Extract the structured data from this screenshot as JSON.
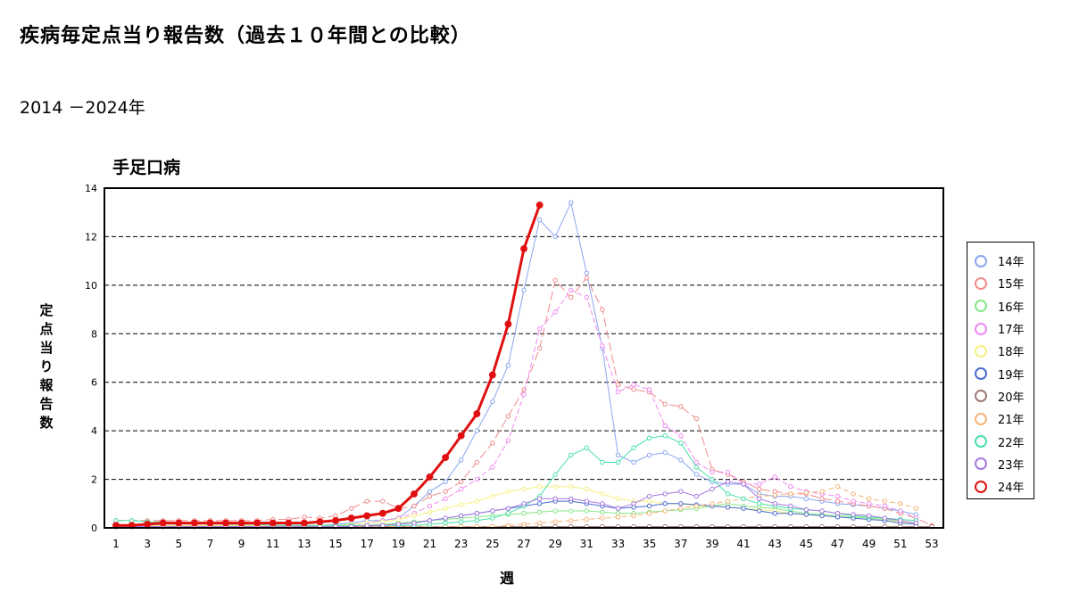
{
  "page": {
    "title": "疾病毎定点当り報告数（過去１０年間との比較）",
    "subtitle": "2014 －2024年"
  },
  "chart_data": {
    "type": "line",
    "title": "手足口病",
    "xlabel": "週",
    "ylabel": "定点当り報告数",
    "xlim": [
      1,
      53
    ],
    "ylim": [
      0,
      14
    ],
    "y_ticks": [
      0,
      2,
      4,
      6,
      8,
      10,
      12,
      14
    ],
    "x_ticks": [
      1,
      3,
      5,
      7,
      9,
      11,
      13,
      15,
      17,
      19,
      21,
      23,
      25,
      27,
      29,
      31,
      33,
      35,
      37,
      39,
      41,
      43,
      45,
      47,
      49,
      51,
      53
    ],
    "grid": "horizontal dashed",
    "legend": "right",
    "series": [
      {
        "name": "14年",
        "color": "#8aa6f0",
        "dash": "solid",
        "width": 1,
        "values": [
          0.1,
          0.1,
          0.1,
          0.1,
          0.1,
          0.1,
          0.1,
          0.1,
          0.1,
          0.1,
          0.1,
          0.1,
          0.1,
          0.1,
          0.15,
          0.2,
          0.3,
          0.3,
          0.4,
          0.9,
          1.5,
          1.9,
          2.8,
          4.0,
          5.2,
          6.7,
          9.8,
          12.7,
          12.0,
          13.4,
          10.5,
          7.4,
          3.0,
          2.7,
          3.0,
          3.1,
          2.8,
          2.2,
          1.9,
          1.8,
          1.8,
          1.4,
          1.3,
          1.3,
          1.2,
          1.1,
          1.0,
          0.95,
          0.9,
          0.8,
          0.7,
          0.55
        ]
      },
      {
        "name": "15年",
        "color": "#f08a8a",
        "dash": "10,4",
        "width": 1,
        "values": [
          0.3,
          0.3,
          0.3,
          0.3,
          0.3,
          0.3,
          0.3,
          0.3,
          0.3,
          0.3,
          0.35,
          0.35,
          0.45,
          0.4,
          0.5,
          0.8,
          1.1,
          1.1,
          0.8,
          0.9,
          1.3,
          1.5,
          1.9,
          2.7,
          3.5,
          4.6,
          5.7,
          7.4,
          10.2,
          9.5,
          10.3,
          9.0,
          5.9,
          5.7,
          5.6,
          5.1,
          5.0,
          4.5,
          2.4,
          2.2,
          1.9,
          1.6,
          1.5,
          1.4,
          1.4,
          1.2,
          1.1,
          1.0,
          0.9,
          0.8,
          0.6,
          0.4,
          0.1
        ]
      },
      {
        "name": "16年",
        "color": "#88e888",
        "dash": "solid",
        "width": 1,
        "values": [
          0.1,
          0.1,
          0.1,
          0.1,
          0.1,
          0.1,
          0.1,
          0.1,
          0.1,
          0.1,
          0.1,
          0.1,
          0.1,
          0.1,
          0.1,
          0.1,
          0.1,
          0.15,
          0.2,
          0.25,
          0.3,
          0.35,
          0.4,
          0.45,
          0.5,
          0.55,
          0.6,
          0.65,
          0.7,
          0.7,
          0.7,
          0.65,
          0.6,
          0.6,
          0.65,
          0.7,
          0.75,
          0.8,
          0.9,
          1.0,
          0.9,
          0.85,
          0.8,
          0.7,
          0.6,
          0.55,
          0.5,
          0.45,
          0.4,
          0.35,
          0.3,
          0.2
        ]
      },
      {
        "name": "17年",
        "color": "#f088f0",
        "dash": "6,3",
        "width": 1,
        "values": [
          0.1,
          0.1,
          0.1,
          0.1,
          0.1,
          0.1,
          0.1,
          0.1,
          0.1,
          0.1,
          0.1,
          0.1,
          0.1,
          0.1,
          0.1,
          0.15,
          0.2,
          0.3,
          0.4,
          0.6,
          0.9,
          1.2,
          1.6,
          2.0,
          2.5,
          3.6,
          5.5,
          8.2,
          8.9,
          9.8,
          9.5,
          7.5,
          5.6,
          5.9,
          5.7,
          4.2,
          3.8,
          2.7,
          2.3,
          2.3,
          1.8,
          1.8,
          2.1,
          1.7,
          1.5,
          1.4,
          1.3,
          1.1,
          1.0,
          0.9,
          0.7,
          0.4
        ]
      },
      {
        "name": "18年",
        "color": "#f5f080",
        "dash": "solid",
        "width": 1,
        "values": [
          0.1,
          0.1,
          0.1,
          0.1,
          0.1,
          0.1,
          0.1,
          0.1,
          0.1,
          0.1,
          0.1,
          0.1,
          0.1,
          0.1,
          0.1,
          0.15,
          0.2,
          0.25,
          0.35,
          0.5,
          0.65,
          0.8,
          0.95,
          1.1,
          1.3,
          1.5,
          1.6,
          1.7,
          1.7,
          1.7,
          1.6,
          1.4,
          1.2,
          1.1,
          1.1,
          1.0,
          1.0,
          0.9,
          0.9,
          0.85,
          0.8,
          0.75,
          0.7,
          0.6,
          0.55,
          0.5,
          0.45,
          0.4,
          0.35,
          0.3,
          0.25,
          0.2
        ]
      },
      {
        "name": "19年",
        "color": "#4a6cd0",
        "dash": "solid",
        "width": 1,
        "values": [
          0.05,
          0.05,
          0.05,
          0.05,
          0.05,
          0.05,
          0.05,
          0.05,
          0.05,
          0.05,
          0.05,
          0.05,
          0.05,
          0.05,
          0.05,
          0.05,
          0.1,
          0.1,
          0.15,
          0.2,
          0.3,
          0.4,
          0.5,
          0.6,
          0.7,
          0.8,
          0.9,
          1.0,
          1.1,
          1.1,
          1.0,
          0.9,
          0.8,
          0.85,
          0.9,
          1.0,
          1.0,
          0.95,
          0.9,
          0.85,
          0.8,
          0.7,
          0.6,
          0.6,
          0.55,
          0.5,
          0.45,
          0.4,
          0.35,
          0.3,
          0.2,
          0.15
        ]
      },
      {
        "name": "20年",
        "color": "#a07878",
        "dash": "solid",
        "width": 1,
        "values": [
          0.05,
          0.05,
          0.05,
          0.05,
          0.05,
          0.05,
          0.05,
          0.05,
          0.05,
          0.05,
          0.05,
          0.05,
          0.05,
          0.05,
          0.05,
          0.05,
          0.05,
          0.05,
          0.05,
          0.05,
          0.05,
          0.05,
          0.05,
          0.05,
          0.05,
          0.05,
          0.05,
          0.05,
          0.05,
          0.05,
          0.05,
          0.05,
          0.05,
          0.05,
          0.05,
          0.05,
          0.05,
          0.05,
          0.05,
          0.05,
          0.05,
          0.05,
          0.05,
          0.05,
          0.05,
          0.05,
          0.05,
          0.05,
          0.05,
          0.05,
          0.05,
          0.05,
          0.05
        ]
      },
      {
        "name": "21年",
        "color": "#f5b478",
        "dash": "6,3",
        "width": 1,
        "values": [
          0.05,
          0.05,
          0.05,
          0.05,
          0.05,
          0.05,
          0.05,
          0.05,
          0.05,
          0.05,
          0.05,
          0.05,
          0.05,
          0.05,
          0.05,
          0.05,
          0.05,
          0.05,
          0.05,
          0.05,
          0.05,
          0.05,
          0.05,
          0.05,
          0.05,
          0.1,
          0.15,
          0.2,
          0.25,
          0.3,
          0.35,
          0.4,
          0.45,
          0.5,
          0.6,
          0.7,
          0.8,
          0.9,
          1.0,
          1.1,
          1.2,
          1.3,
          1.35,
          1.4,
          1.45,
          1.5,
          1.7,
          1.4,
          1.2,
          1.1,
          1.0,
          0.8
        ]
      },
      {
        "name": "22年",
        "color": "#48e0a8",
        "dash": "solid",
        "width": 1,
        "values": [
          0.3,
          0.3,
          0.25,
          0.25,
          0.2,
          0.2,
          0.2,
          0.15,
          0.15,
          0.15,
          0.1,
          0.1,
          0.1,
          0.1,
          0.1,
          0.1,
          0.1,
          0.1,
          0.1,
          0.1,
          0.15,
          0.2,
          0.25,
          0.3,
          0.4,
          0.6,
          0.9,
          1.3,
          2.2,
          3.0,
          3.3,
          2.7,
          2.7,
          3.3,
          3.7,
          3.8,
          3.5,
          2.5,
          2.0,
          1.4,
          1.2,
          1.0,
          0.9,
          0.8,
          0.75,
          0.7,
          0.6,
          0.5,
          0.45,
          0.4,
          0.35,
          0.3
        ]
      },
      {
        "name": "23年",
        "color": "#a878e0",
        "dash": "solid",
        "width": 1,
        "values": [
          0.05,
          0.05,
          0.05,
          0.05,
          0.05,
          0.05,
          0.05,
          0.05,
          0.05,
          0.05,
          0.05,
          0.05,
          0.05,
          0.05,
          0.05,
          0.05,
          0.1,
          0.1,
          0.15,
          0.2,
          0.3,
          0.4,
          0.5,
          0.6,
          0.7,
          0.8,
          1.0,
          1.2,
          1.2,
          1.2,
          1.1,
          1.0,
          0.8,
          1.0,
          1.3,
          1.4,
          1.5,
          1.3,
          1.6,
          1.9,
          1.8,
          1.2,
          1.0,
          0.9,
          0.75,
          0.7,
          0.6,
          0.55,
          0.5,
          0.4,
          0.3,
          0.2
        ]
      },
      {
        "name": "24年",
        "color": "#e01010",
        "dash": "solid",
        "width": 3,
        "values": [
          0.1,
          0.1,
          0.15,
          0.2,
          0.2,
          0.2,
          0.2,
          0.2,
          0.2,
          0.2,
          0.2,
          0.2,
          0.2,
          0.25,
          0.3,
          0.4,
          0.5,
          0.6,
          0.8,
          1.4,
          2.1,
          2.9,
          3.8,
          4.7,
          6.3,
          8.4,
          11.5,
          13.3
        ]
      }
    ]
  }
}
